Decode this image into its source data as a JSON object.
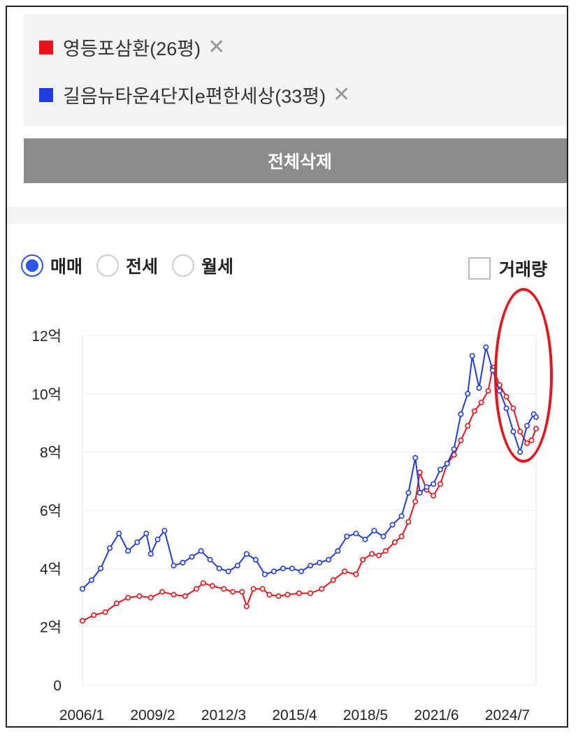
{
  "legend": {
    "items": [
      {
        "label": "영등포삼환(26평)",
        "color": "#e8141b"
      },
      {
        "label": "길음뉴타운4단지e편한세상(33평)",
        "color": "#1f3de0"
      }
    ],
    "remove_symbol": "✕"
  },
  "actions": {
    "delete_all_label": "전체삭제"
  },
  "options": {
    "radios": [
      {
        "label": "매매",
        "selected": true
      },
      {
        "label": "전세",
        "selected": false
      },
      {
        "label": "월세",
        "selected": false
      }
    ],
    "volume_label": "거래량",
    "volume_checked": false
  },
  "chart_data": {
    "type": "line",
    "x_ticks": [
      "2006/1",
      "2009/2",
      "2012/3",
      "2015/4",
      "2018/5",
      "2021/6",
      "2024/7"
    ],
    "y_ticks": [
      "0",
      "2억",
      "4억",
      "6억",
      "8억",
      "10억",
      "12억"
    ],
    "ylim": [
      0,
      12
    ],
    "xlim": [
      2006.0,
      2025.9
    ],
    "grid": true,
    "series": [
      {
        "name": "영등포삼환(26평)",
        "color": "#e8141b",
        "points": [
          [
            2006.0,
            2.2
          ],
          [
            2006.5,
            2.4
          ],
          [
            2007.0,
            2.5
          ],
          [
            2007.5,
            2.8
          ],
          [
            2008.0,
            3.0
          ],
          [
            2008.5,
            3.05
          ],
          [
            2009.0,
            3.0
          ],
          [
            2009.5,
            3.2
          ],
          [
            2010.0,
            3.1
          ],
          [
            2010.5,
            3.05
          ],
          [
            2011.0,
            3.3
          ],
          [
            2011.3,
            3.5
          ],
          [
            2011.7,
            3.4
          ],
          [
            2012.2,
            3.3
          ],
          [
            2012.6,
            3.2
          ],
          [
            2013.0,
            3.2
          ],
          [
            2013.2,
            2.7
          ],
          [
            2013.5,
            3.3
          ],
          [
            2013.9,
            3.3
          ],
          [
            2014.2,
            3.1
          ],
          [
            2014.6,
            3.05
          ],
          [
            2015.0,
            3.1
          ],
          [
            2015.5,
            3.15
          ],
          [
            2016.0,
            3.15
          ],
          [
            2016.5,
            3.3
          ],
          [
            2017.0,
            3.6
          ],
          [
            2017.5,
            3.9
          ],
          [
            2018.0,
            3.8
          ],
          [
            2018.3,
            4.3
          ],
          [
            2018.7,
            4.5
          ],
          [
            2019.0,
            4.45
          ],
          [
            2019.3,
            4.6
          ],
          [
            2019.7,
            4.9
          ],
          [
            2020.0,
            5.1
          ],
          [
            2020.3,
            5.6
          ],
          [
            2020.6,
            6.3
          ],
          [
            2020.8,
            7.3
          ],
          [
            2021.1,
            6.7
          ],
          [
            2021.4,
            6.5
          ],
          [
            2021.7,
            6.9
          ],
          [
            2022.0,
            7.6
          ],
          [
            2022.3,
            7.9
          ],
          [
            2022.6,
            8.4
          ],
          [
            2022.9,
            8.9
          ],
          [
            2023.2,
            9.4
          ],
          [
            2023.5,
            9.7
          ],
          [
            2023.8,
            10.1
          ],
          [
            2024.0,
            10.9
          ],
          [
            2024.3,
            10.3
          ],
          [
            2024.6,
            9.9
          ],
          [
            2024.9,
            9.5
          ],
          [
            2025.2,
            8.7
          ],
          [
            2025.5,
            8.3
          ],
          [
            2025.7,
            8.4
          ],
          [
            2025.9,
            8.8
          ]
        ]
      },
      {
        "name": "길음뉴타운4단지e편한세상(33평)",
        "color": "#1f3de0",
        "points": [
          [
            2006.0,
            3.3
          ],
          [
            2006.4,
            3.6
          ],
          [
            2006.8,
            4.0
          ],
          [
            2007.2,
            4.7
          ],
          [
            2007.6,
            5.2
          ],
          [
            2008.0,
            4.6
          ],
          [
            2008.4,
            4.9
          ],
          [
            2008.8,
            5.2
          ],
          [
            2009.0,
            4.5
          ],
          [
            2009.3,
            5.0
          ],
          [
            2009.6,
            5.3
          ],
          [
            2010.0,
            4.1
          ],
          [
            2010.4,
            4.2
          ],
          [
            2010.8,
            4.4
          ],
          [
            2011.2,
            4.6
          ],
          [
            2011.6,
            4.3
          ],
          [
            2012.0,
            4.0
          ],
          [
            2012.4,
            3.9
          ],
          [
            2012.8,
            4.1
          ],
          [
            2013.2,
            4.5
          ],
          [
            2013.6,
            4.3
          ],
          [
            2014.0,
            3.8
          ],
          [
            2014.4,
            3.9
          ],
          [
            2014.8,
            4.0
          ],
          [
            2015.2,
            4.0
          ],
          [
            2015.6,
            3.9
          ],
          [
            2016.0,
            4.1
          ],
          [
            2016.4,
            4.2
          ],
          [
            2016.8,
            4.3
          ],
          [
            2017.2,
            4.6
          ],
          [
            2017.6,
            5.1
          ],
          [
            2018.0,
            5.2
          ],
          [
            2018.4,
            5.0
          ],
          [
            2018.8,
            5.3
          ],
          [
            2019.2,
            5.1
          ],
          [
            2019.6,
            5.5
          ],
          [
            2020.0,
            5.8
          ],
          [
            2020.3,
            6.6
          ],
          [
            2020.6,
            7.8
          ],
          [
            2020.8,
            6.6
          ],
          [
            2021.1,
            6.8
          ],
          [
            2021.4,
            6.9
          ],
          [
            2021.7,
            7.4
          ],
          [
            2022.0,
            7.6
          ],
          [
            2022.3,
            8.1
          ],
          [
            2022.6,
            9.3
          ],
          [
            2022.9,
            10.0
          ],
          [
            2023.1,
            11.3
          ],
          [
            2023.4,
            10.2
          ],
          [
            2023.7,
            11.6
          ],
          [
            2024.0,
            10.8
          ],
          [
            2024.3,
            10.1
          ],
          [
            2024.6,
            9.5
          ],
          [
            2024.9,
            8.7
          ],
          [
            2025.2,
            8.0
          ],
          [
            2025.5,
            8.9
          ],
          [
            2025.8,
            9.3
          ],
          [
            2025.9,
            9.2
          ]
        ]
      }
    ]
  }
}
